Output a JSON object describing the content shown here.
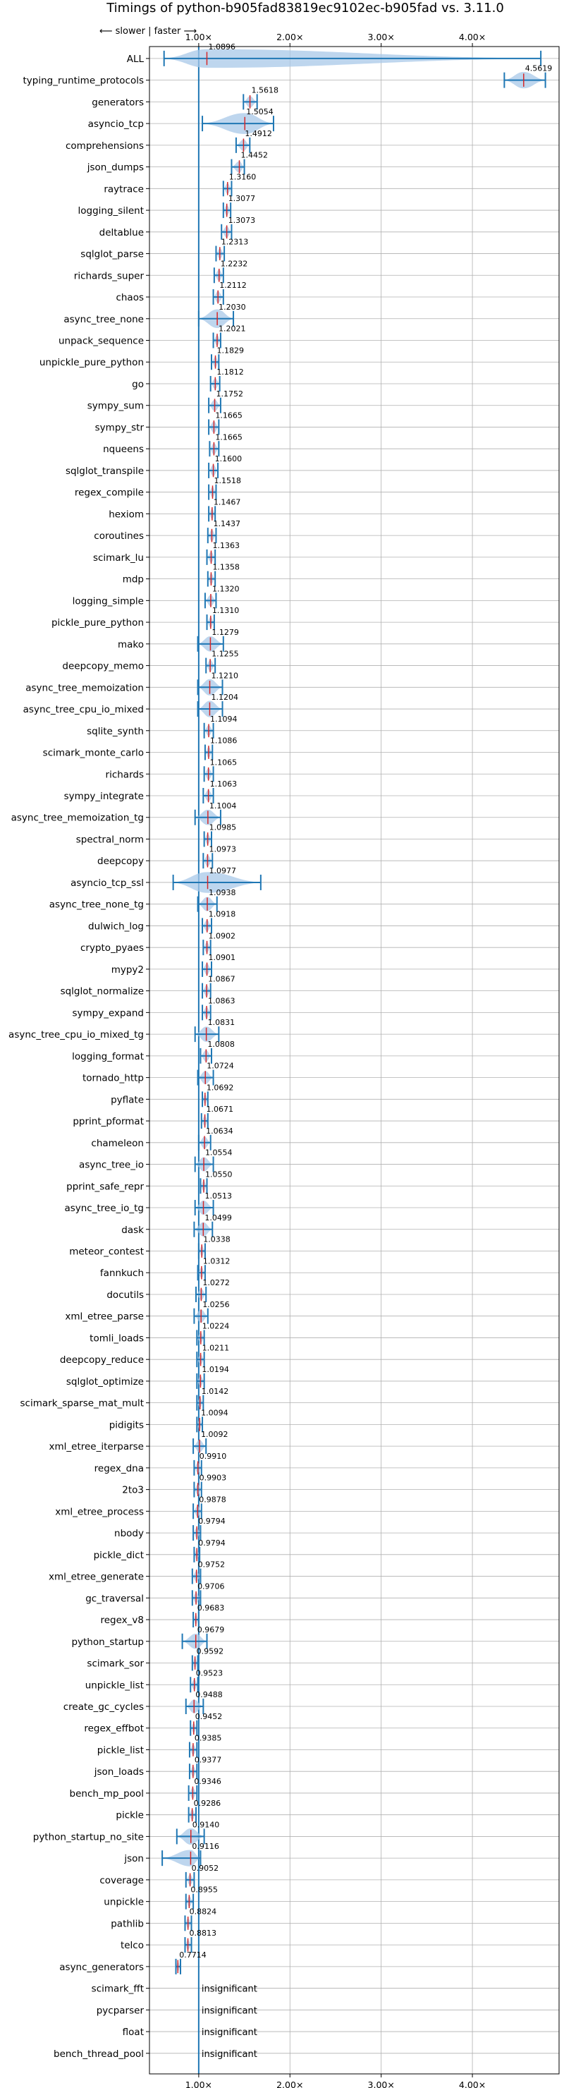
{
  "chart_data": {
    "type": "violin",
    "title": "Timings of python-b905fad83819ec9102ec-b905fad vs. 3.11.0",
    "direction_label": "⟵ slower | faster ⟶",
    "xlim": [
      0.46,
      4.95
    ],
    "xticks": [
      1,
      2,
      3,
      4
    ],
    "xtick_labels": [
      "1.00×",
      "2.00×",
      "3.00×",
      "4.00×"
    ],
    "grid": true,
    "reference_line": 1.0,
    "colors": {
      "body": "#a8c8e8",
      "line": "#1f77b4",
      "median": "#d62728",
      "grid": "#b0b0b0",
      "ref": "#1f77b4"
    },
    "benchmarks": [
      {
        "name": "ALL",
        "value": 1.0896,
        "label": "1.0896",
        "lo": 0.62,
        "hi": 4.75,
        "w": 0.18
      },
      {
        "name": "typing_runtime_protocols",
        "value": 4.5619,
        "label": "4.5619",
        "lo": 4.35,
        "hi": 4.8,
        "w": 0.14
      },
      {
        "name": "generators",
        "value": 1.5618,
        "label": "1.5618",
        "lo": 1.49,
        "hi": 1.64,
        "w": 0.05
      },
      {
        "name": "asyncio_tcp",
        "value": 1.5054,
        "label": "1.5054",
        "lo": 1.04,
        "hi": 1.82,
        "w": 0.26
      },
      {
        "name": "comprehensions",
        "value": 1.4912,
        "label": "1.4912",
        "lo": 1.41,
        "hi": 1.56,
        "w": 0.05
      },
      {
        "name": "json_dumps",
        "value": 1.4452,
        "label": "1.4452",
        "lo": 1.36,
        "hi": 1.5,
        "w": 0.05
      },
      {
        "name": "raytrace",
        "value": 1.316,
        "label": "1.3160",
        "lo": 1.27,
        "hi": 1.36,
        "w": 0.04
      },
      {
        "name": "logging_silent",
        "value": 1.3077,
        "label": "1.3077",
        "lo": 1.27,
        "hi": 1.35,
        "w": 0.04
      },
      {
        "name": "deltablue",
        "value": 1.3073,
        "label": "1.3073",
        "lo": 1.25,
        "hi": 1.36,
        "w": 0.05
      },
      {
        "name": "sqlglot_parse",
        "value": 1.2313,
        "label": "1.2313",
        "lo": 1.19,
        "hi": 1.28,
        "w": 0.04
      },
      {
        "name": "richards_super",
        "value": 1.2232,
        "label": "1.2232",
        "lo": 1.17,
        "hi": 1.27,
        "w": 0.05
      },
      {
        "name": "chaos",
        "value": 1.2112,
        "label": "1.2112",
        "lo": 1.16,
        "hi": 1.27,
        "w": 0.05
      },
      {
        "name": "async_tree_none",
        "value": 1.203,
        "label": "1.2030",
        "lo": 1.0,
        "hi": 1.38,
        "w": 0.18
      },
      {
        "name": "unpack_sequence",
        "value": 1.2021,
        "label": "1.2021",
        "lo": 1.16,
        "hi": 1.24,
        "w": 0.04
      },
      {
        "name": "unpickle_pure_python",
        "value": 1.1829,
        "label": "1.1829",
        "lo": 1.14,
        "hi": 1.22,
        "w": 0.04
      },
      {
        "name": "go",
        "value": 1.1812,
        "label": "1.1812",
        "lo": 1.13,
        "hi": 1.23,
        "w": 0.04
      },
      {
        "name": "sympy_sum",
        "value": 1.1752,
        "label": "1.1752",
        "lo": 1.11,
        "hi": 1.24,
        "w": 0.05
      },
      {
        "name": "sympy_str",
        "value": 1.1665,
        "label": "1.1665",
        "lo": 1.11,
        "hi": 1.22,
        "w": 0.05
      },
      {
        "name": "nqueens",
        "value": 1.1665,
        "label": "1.1665",
        "lo": 1.12,
        "hi": 1.22,
        "w": 0.05
      },
      {
        "name": "sqlglot_transpile",
        "value": 1.16,
        "label": "1.1600",
        "lo": 1.11,
        "hi": 1.21,
        "w": 0.05
      },
      {
        "name": "regex_compile",
        "value": 1.1518,
        "label": "1.1518",
        "lo": 1.11,
        "hi": 1.19,
        "w": 0.04
      },
      {
        "name": "hexiom",
        "value": 1.1467,
        "label": "1.1467",
        "lo": 1.11,
        "hi": 1.18,
        "w": 0.04
      },
      {
        "name": "coroutines",
        "value": 1.1437,
        "label": "1.1437",
        "lo": 1.1,
        "hi": 1.19,
        "w": 0.05
      },
      {
        "name": "scimark_lu",
        "value": 1.1363,
        "label": "1.1363",
        "lo": 1.09,
        "hi": 1.18,
        "w": 0.04
      },
      {
        "name": "mdp",
        "value": 1.1358,
        "label": "1.1358",
        "lo": 1.1,
        "hi": 1.18,
        "w": 0.04
      },
      {
        "name": "logging_simple",
        "value": 1.132,
        "label": "1.1320",
        "lo": 1.07,
        "hi": 1.19,
        "w": 0.05
      },
      {
        "name": "pickle_pure_python",
        "value": 1.131,
        "label": "1.1310",
        "lo": 1.09,
        "hi": 1.17,
        "w": 0.04
      },
      {
        "name": "mako",
        "value": 1.1279,
        "label": "1.1279",
        "lo": 0.99,
        "hi": 1.27,
        "w": 0.12
      },
      {
        "name": "deepcopy_memo",
        "value": 1.1255,
        "label": "1.1255",
        "lo": 1.08,
        "hi": 1.18,
        "w": 0.05
      },
      {
        "name": "async_tree_memoization",
        "value": 1.121,
        "label": "1.1210",
        "lo": 0.99,
        "hi": 1.26,
        "w": 0.14
      },
      {
        "name": "async_tree_cpu_io_mixed",
        "value": 1.1204,
        "label": "1.1204",
        "lo": 0.99,
        "hi": 1.26,
        "w": 0.14
      },
      {
        "name": "sqlite_synth",
        "value": 1.1094,
        "label": "1.1094",
        "lo": 1.06,
        "hi": 1.16,
        "w": 0.04
      },
      {
        "name": "scimark_monte_carlo",
        "value": 1.1086,
        "label": "1.1086",
        "lo": 1.07,
        "hi": 1.15,
        "w": 0.04
      },
      {
        "name": "richards",
        "value": 1.1065,
        "label": "1.1065",
        "lo": 1.06,
        "hi": 1.16,
        "w": 0.05
      },
      {
        "name": "sympy_integrate",
        "value": 1.1063,
        "label": "1.1063",
        "lo": 1.05,
        "hi": 1.16,
        "w": 0.05
      },
      {
        "name": "async_tree_memoization_tg",
        "value": 1.1004,
        "label": "1.1004",
        "lo": 0.96,
        "hi": 1.24,
        "w": 0.12
      },
      {
        "name": "spectral_norm",
        "value": 1.0985,
        "label": "1.0985",
        "lo": 1.06,
        "hi": 1.14,
        "w": 0.04
      },
      {
        "name": "deepcopy",
        "value": 1.0973,
        "label": "1.0973",
        "lo": 1.05,
        "hi": 1.15,
        "w": 0.05
      },
      {
        "name": "asyncio_tcp_ssl",
        "value": 1.0977,
        "label": "1.0977",
        "lo": 0.72,
        "hi": 1.68,
        "w": 0.4
      },
      {
        "name": "async_tree_none_tg",
        "value": 1.0938,
        "label": "1.0938",
        "lo": 0.99,
        "hi": 1.2,
        "w": 0.1
      },
      {
        "name": "dulwich_log",
        "value": 1.0918,
        "label": "1.0918",
        "lo": 1.04,
        "hi": 1.14,
        "w": 0.05
      },
      {
        "name": "crypto_pyaes",
        "value": 1.0902,
        "label": "1.0902",
        "lo": 1.05,
        "hi": 1.13,
        "w": 0.04
      },
      {
        "name": "mypy2",
        "value": 1.0901,
        "label": "1.0901",
        "lo": 1.04,
        "hi": 1.14,
        "w": 0.05
      },
      {
        "name": "sqlglot_normalize",
        "value": 1.0867,
        "label": "1.0867",
        "lo": 1.04,
        "hi": 1.13,
        "w": 0.05
      },
      {
        "name": "sympy_expand",
        "value": 1.0863,
        "label": "1.0863",
        "lo": 1.04,
        "hi": 1.13,
        "w": 0.05
      },
      {
        "name": "async_tree_cpu_io_mixed_tg",
        "value": 1.0831,
        "label": "1.0831",
        "lo": 0.96,
        "hi": 1.22,
        "w": 0.12
      },
      {
        "name": "logging_format",
        "value": 1.0808,
        "label": "1.0808",
        "lo": 1.02,
        "hi": 1.14,
        "w": 0.05
      },
      {
        "name": "tornado_http",
        "value": 1.0724,
        "label": "1.0724",
        "lo": 0.99,
        "hi": 1.16,
        "w": 0.08
      },
      {
        "name": "pyflate",
        "value": 1.0692,
        "label": "1.0692",
        "lo": 1.04,
        "hi": 1.1,
        "w": 0.03
      },
      {
        "name": "pprint_pformat",
        "value": 1.0671,
        "label": "1.0671",
        "lo": 1.03,
        "hi": 1.1,
        "w": 0.04
      },
      {
        "name": "chameleon",
        "value": 1.0634,
        "label": "1.0634",
        "lo": 1.0,
        "hi": 1.13,
        "w": 0.06
      },
      {
        "name": "async_tree_io",
        "value": 1.0554,
        "label": "1.0554",
        "lo": 0.96,
        "hi": 1.16,
        "w": 0.1
      },
      {
        "name": "pprint_safe_repr",
        "value": 1.055,
        "label": "1.0550",
        "lo": 1.02,
        "hi": 1.09,
        "w": 0.04
      },
      {
        "name": "async_tree_io_tg",
        "value": 1.0513,
        "label": "1.0513",
        "lo": 0.96,
        "hi": 1.16,
        "w": 0.1
      },
      {
        "name": "dask",
        "value": 1.0499,
        "label": "1.0499",
        "lo": 0.95,
        "hi": 1.15,
        "w": 0.1
      },
      {
        "name": "meteor_contest",
        "value": 1.0338,
        "label": "1.0338",
        "lo": 1.0,
        "hi": 1.07,
        "w": 0.04
      },
      {
        "name": "fannkuch",
        "value": 1.0312,
        "label": "1.0312",
        "lo": 0.99,
        "hi": 1.07,
        "w": 0.04
      },
      {
        "name": "docutils",
        "value": 1.0272,
        "label": "1.0272",
        "lo": 0.97,
        "hi": 1.08,
        "w": 0.05
      },
      {
        "name": "xml_etree_parse",
        "value": 1.0256,
        "label": "1.0256",
        "lo": 0.95,
        "hi": 1.1,
        "w": 0.08
      },
      {
        "name": "tomli_loads",
        "value": 1.0224,
        "label": "1.0224",
        "lo": 0.98,
        "hi": 1.06,
        "w": 0.04
      },
      {
        "name": "deepcopy_reduce",
        "value": 1.0211,
        "label": "1.0211",
        "lo": 0.98,
        "hi": 1.06,
        "w": 0.04
      },
      {
        "name": "sqlglot_optimize",
        "value": 1.0194,
        "label": "1.0194",
        "lo": 0.98,
        "hi": 1.06,
        "w": 0.04
      },
      {
        "name": "scimark_sparse_mat_mult",
        "value": 1.0142,
        "label": "1.0142",
        "lo": 0.98,
        "hi": 1.05,
        "w": 0.03
      },
      {
        "name": "pidigits",
        "value": 1.0094,
        "label": "1.0094",
        "lo": 0.98,
        "hi": 1.04,
        "w": 0.03
      },
      {
        "name": "xml_etree_iterparse",
        "value": 1.0092,
        "label": "1.0092",
        "lo": 0.94,
        "hi": 1.08,
        "w": 0.07
      },
      {
        "name": "regex_dna",
        "value": 0.991,
        "label": "0.9910",
        "lo": 0.95,
        "hi": 1.03,
        "w": 0.04
      },
      {
        "name": "2to3",
        "value": 0.9903,
        "label": "0.9903",
        "lo": 0.95,
        "hi": 1.03,
        "w": 0.04
      },
      {
        "name": "xml_etree_process",
        "value": 0.9878,
        "label": "0.9878",
        "lo": 0.94,
        "hi": 1.03,
        "w": 0.04
      },
      {
        "name": "nbody",
        "value": 0.9794,
        "label": "0.9794",
        "lo": 0.94,
        "hi": 1.02,
        "w": 0.04
      },
      {
        "name": "pickle_dict",
        "value": 0.9794,
        "label": "0.9794",
        "lo": 0.95,
        "hi": 1.01,
        "w": 0.03
      },
      {
        "name": "xml_etree_generate",
        "value": 0.9752,
        "label": "0.9752",
        "lo": 0.93,
        "hi": 1.02,
        "w": 0.04
      },
      {
        "name": "gc_traversal",
        "value": 0.9706,
        "label": "0.9706",
        "lo": 0.93,
        "hi": 1.02,
        "w": 0.04
      },
      {
        "name": "regex_v8",
        "value": 0.9683,
        "label": "0.9683",
        "lo": 0.94,
        "hi": 1.0,
        "w": 0.03
      },
      {
        "name": "python_startup",
        "value": 0.9679,
        "label": "0.9679",
        "lo": 0.82,
        "hi": 1.09,
        "w": 0.12
      },
      {
        "name": "scimark_sor",
        "value": 0.9592,
        "label": "0.9592",
        "lo": 0.93,
        "hi": 0.99,
        "w": 0.03
      },
      {
        "name": "unpickle_list",
        "value": 0.9523,
        "label": "0.9523",
        "lo": 0.91,
        "hi": 0.99,
        "w": 0.04
      },
      {
        "name": "create_gc_cycles",
        "value": 0.9488,
        "label": "0.9488",
        "lo": 0.86,
        "hi": 1.05,
        "w": 0.09
      },
      {
        "name": "regex_effbot",
        "value": 0.9452,
        "label": "0.9452",
        "lo": 0.91,
        "hi": 0.98,
        "w": 0.03
      },
      {
        "name": "pickle_list",
        "value": 0.9385,
        "label": "0.9385",
        "lo": 0.9,
        "hi": 0.98,
        "w": 0.04
      },
      {
        "name": "json_loads",
        "value": 0.9377,
        "label": "0.9377",
        "lo": 0.9,
        "hi": 0.98,
        "w": 0.04
      },
      {
        "name": "bench_mp_pool",
        "value": 0.9346,
        "label": "0.9346",
        "lo": 0.89,
        "hi": 0.98,
        "w": 0.04
      },
      {
        "name": "pickle",
        "value": 0.9286,
        "label": "0.9286",
        "lo": 0.89,
        "hi": 0.97,
        "w": 0.04
      },
      {
        "name": "python_startup_no_site",
        "value": 0.914,
        "label": "0.9140",
        "lo": 0.76,
        "hi": 1.06,
        "w": 0.14
      },
      {
        "name": "json",
        "value": 0.9116,
        "label": "0.9116",
        "lo": 0.6,
        "hi": 1.02,
        "w": 0.14
      },
      {
        "name": "coverage",
        "value": 0.9052,
        "label": "0.9052",
        "lo": 0.86,
        "hi": 0.95,
        "w": 0.04
      },
      {
        "name": "unpickle",
        "value": 0.8955,
        "label": "0.8955",
        "lo": 0.86,
        "hi": 0.94,
        "w": 0.04
      },
      {
        "name": "pathlib",
        "value": 0.8824,
        "label": "0.8824",
        "lo": 0.85,
        "hi": 0.92,
        "w": 0.03
      },
      {
        "name": "telco",
        "value": 0.8813,
        "label": "0.8813",
        "lo": 0.85,
        "hi": 0.92,
        "w": 0.03
      },
      {
        "name": "async_generators",
        "value": 0.7714,
        "label": "0.7714",
        "lo": 0.75,
        "hi": 0.8,
        "w": 0.03
      },
      {
        "name": "scimark_fft",
        "insignificant": true,
        "label": "insignificant"
      },
      {
        "name": "pycparser",
        "insignificant": true,
        "label": "insignificant"
      },
      {
        "name": "float",
        "insignificant": true,
        "label": "insignificant"
      },
      {
        "name": "bench_thread_pool",
        "insignificant": true,
        "label": "insignificant"
      }
    ]
  }
}
